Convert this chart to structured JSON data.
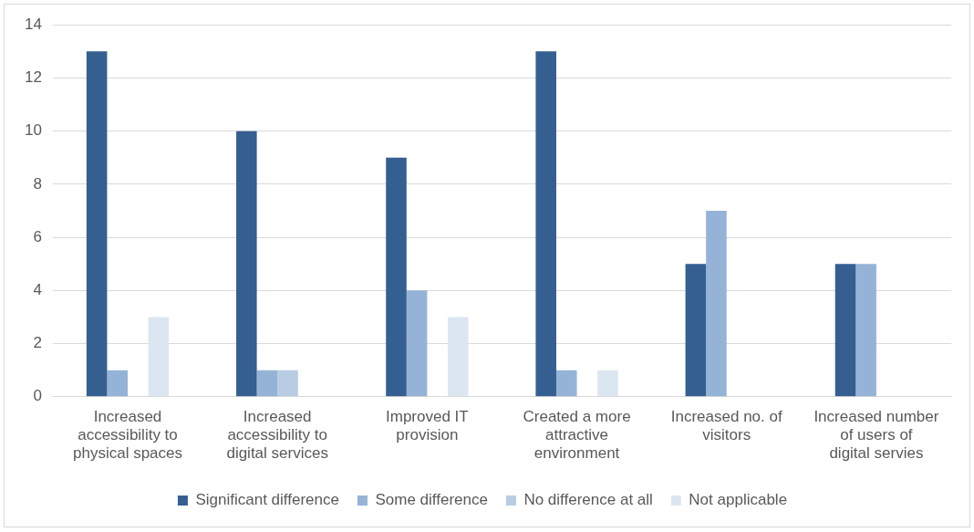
{
  "chart_data": {
    "type": "bar",
    "categories": [
      "Increased accessibility to physical spaces",
      "Increased accessibility to digital services",
      "Improved IT provision",
      "Created a more attractive environment",
      "Increased no. of visitors",
      "Increased number of users of digital servies"
    ],
    "series": [
      {
        "name": "Significant difference",
        "color": "#365f91",
        "values": [
          13,
          10,
          9,
          13,
          5,
          5
        ]
      },
      {
        "name": "Some difference",
        "color": "#95b3d7",
        "values": [
          1,
          1,
          4,
          1,
          7,
          5
        ]
      },
      {
        "name": "No difference at all",
        "color": "#b8cce4",
        "values": [
          0,
          1,
          0,
          0,
          0,
          0
        ]
      },
      {
        "name": "Not applicable",
        "color": "#dce6f1",
        "values": [
          3,
          0,
          3,
          1,
          0,
          0
        ]
      }
    ],
    "ylim": [
      0,
      14
    ],
    "yticks": [
      0,
      2,
      4,
      6,
      8,
      10,
      12,
      14
    ],
    "grid": "y",
    "legend": "bottom"
  }
}
